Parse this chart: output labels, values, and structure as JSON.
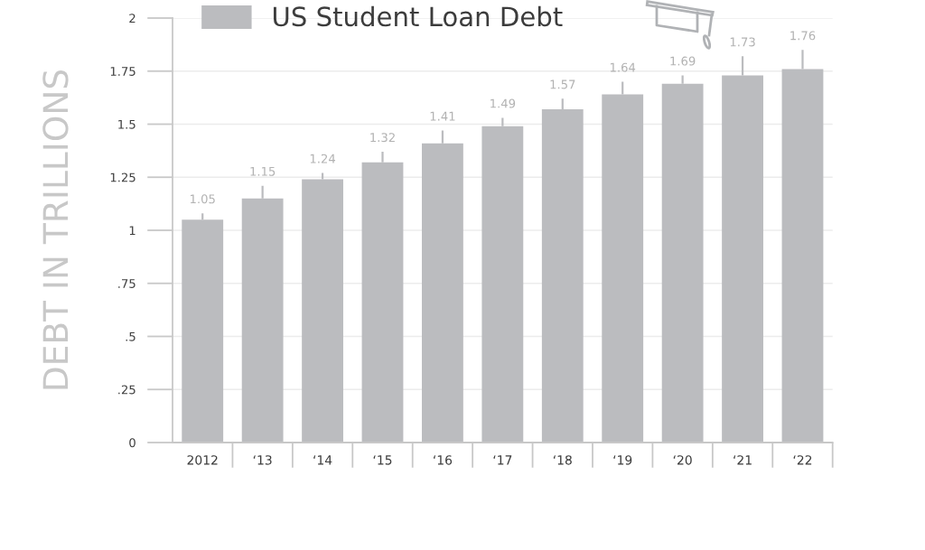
{
  "chart_data": {
    "type": "bar",
    "ylabel": "DEBT IN TRILLIONS",
    "categories": [
      "2012",
      "‘13",
      "‘14",
      "‘15",
      "‘16",
      "‘17",
      "‘18",
      "‘19",
      "‘20",
      "‘21",
      "‘22"
    ],
    "series": [
      {
        "name": "US Student Loan Debt",
        "color": "#bbbcbf",
        "values": [
          1.05,
          1.15,
          1.24,
          1.32,
          1.41,
          1.49,
          1.57,
          1.64,
          1.69,
          1.73,
          1.76
        ],
        "errors": [
          [
            1.05,
            1.08
          ],
          [
            1.15,
            1.21
          ],
          [
            1.24,
            1.27
          ],
          [
            1.32,
            1.37
          ],
          [
            1.41,
            1.47
          ],
          [
            1.49,
            1.53
          ],
          [
            1.57,
            1.62
          ],
          [
            1.64,
            1.7
          ],
          [
            1.69,
            1.73
          ],
          [
            1.73,
            1.82
          ],
          [
            1.76,
            1.85
          ]
        ],
        "value_labels": [
          "1.05",
          "1.15",
          "1.24",
          "1.32",
          "1.41",
          "1.49",
          "1.57",
          "1.64",
          "1.69",
          "1.73",
          "1.76"
        ]
      }
    ],
    "ylim": [
      0,
      2
    ],
    "yticks": [
      0,
      {
        "value": 0.25,
        "label": ".25"
      },
      {
        "value": 0.5,
        "label": ".5"
      },
      {
        "value": 0.75,
        "label": ".75"
      },
      1,
      1.25,
      1.5,
      1.75,
      2
    ],
    "grid": "y",
    "legend": "top"
  }
}
